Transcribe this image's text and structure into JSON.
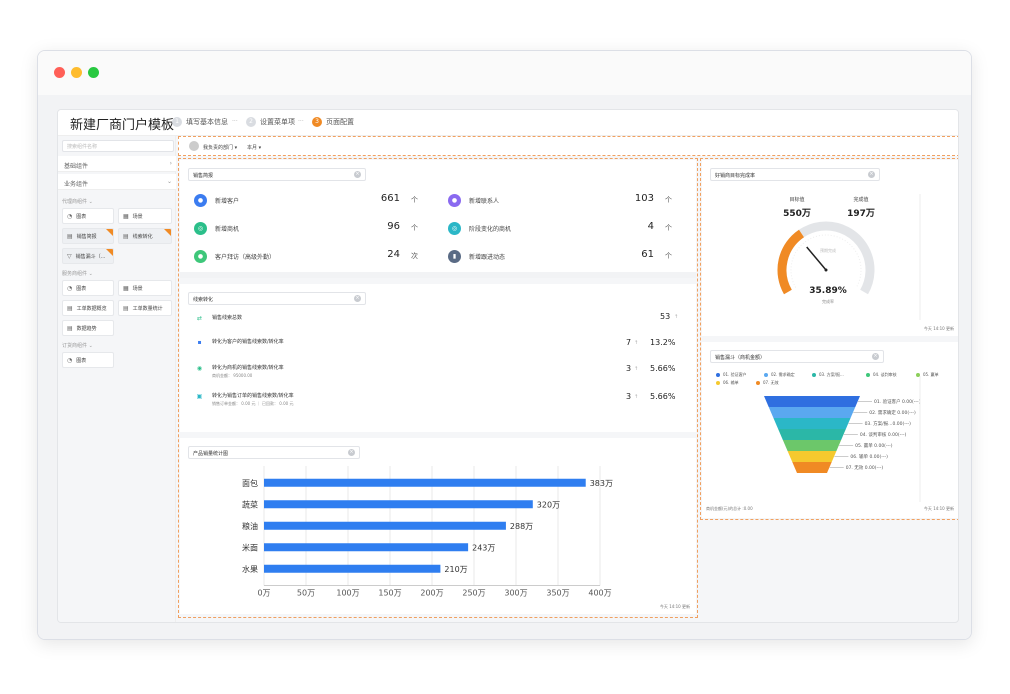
{
  "window": {
    "title": "新建厂商门户模板"
  },
  "steps": [
    {
      "num": "1",
      "label": "填写基本信息"
    },
    {
      "num": "2",
      "label": "设置菜单项"
    },
    {
      "num": "3",
      "label": "页面配置"
    }
  ],
  "step_sep": "···",
  "sidebar": {
    "search_placeholder": "搜索组件名称",
    "groups": [
      {
        "label": "基础组件",
        "chevron": "›"
      },
      {
        "label": "业务组件",
        "chevron": "⌄"
      }
    ],
    "sections": [
      {
        "label": "代理商组件 ⌄"
      },
      {
        "label": "服务商组件 ⌄"
      },
      {
        "label": "订货商组件 ⌄"
      }
    ],
    "items": [
      {
        "label": "图表",
        "icon": "pie-chart-icon"
      },
      {
        "label": "场景",
        "icon": "grid-icon"
      },
      {
        "label": "销售简报",
        "icon": "report-icon"
      },
      {
        "label": "线索转化",
        "icon": "report-icon"
      },
      {
        "label": "销售漏斗（...",
        "icon": "funnel-icon"
      },
      {
        "label": "图表",
        "icon": "pie-chart-icon"
      },
      {
        "label": "场景",
        "icon": "grid-icon"
      },
      {
        "label": "工单数据概览",
        "icon": "report-icon"
      },
      {
        "label": "工单数量统计",
        "icon": "report-icon"
      },
      {
        "label": "数据趋势",
        "icon": "report-icon"
      },
      {
        "label": "图表",
        "icon": "pie-chart-icon"
      }
    ]
  },
  "filters": {
    "dept": "我负责的部门 ▾",
    "period": "本月 ▾"
  },
  "sales_brief": {
    "title": "销售简报",
    "close": "×",
    "rows": [
      {
        "label": "新增客户",
        "value": "661",
        "unit": "个",
        "color": "#3b7cf0",
        "icon": "customer-icon"
      },
      {
        "label": "新增联系人",
        "value": "103",
        "unit": "个",
        "color": "#8a6af0",
        "icon": "contact-icon"
      },
      {
        "label": "新增商机",
        "value": "96",
        "unit": "个",
        "color": "#2bbf8a",
        "icon": "opportunity-icon"
      },
      {
        "label": "阶段变化的商机",
        "value": "4",
        "unit": "个",
        "color": "#2bb7c7",
        "icon": "stage-icon"
      },
      {
        "label": "客户拜访（高级外勤）",
        "value": "24",
        "unit": "次",
        "color": "#3ec77a",
        "icon": "location-icon"
      },
      {
        "label": "新增跟进动态",
        "value": "61",
        "unit": "个",
        "color": "#5a6b85",
        "icon": "activity-icon"
      }
    ]
  },
  "lead_conversion": {
    "title": "线索转化",
    "close": "×",
    "rows": [
      {
        "label": "销售线索总数",
        "sub": "",
        "num": "53",
        "pct": "",
        "arrow": "↑",
        "color": "#2bbf8a"
      },
      {
        "label": "转化为客户的销售线索数/转化率",
        "sub": "",
        "num": "7",
        "pct": "13.2%",
        "arrow": "↑",
        "color": "#3b7cf0"
      },
      {
        "label": "转化为商机的销售线索数/转化率",
        "sub": "商机金额： 95000.00",
        "num": "3",
        "pct": "5.66%",
        "arrow": "↑",
        "color": "#2bbf8a"
      },
      {
        "label": "转化为销售订单的销售线索数/转化率",
        "sub": "销售订单金额： 0.00 元  ｜  已回款： 0.00 元",
        "num": "3",
        "pct": "5.66%",
        "arrow": "↑",
        "color": "#2bb7c7"
      }
    ]
  },
  "product_chart": {
    "title": "产品销量统计图",
    "close": "×",
    "footer": "今天 14:10 更新"
  },
  "chart_data": {
    "type": "bar",
    "orientation": "horizontal",
    "categories": [
      "面包",
      "蔬菜",
      "粮油",
      "米面",
      "水果"
    ],
    "values": [
      383,
      320,
      288,
      243,
      210
    ],
    "value_labels": [
      "383万",
      "320万",
      "288万",
      "243万",
      "210万"
    ],
    "xticks": [
      "0万",
      "50万",
      "100万",
      "150万",
      "200万",
      "250万",
      "300万",
      "350万",
      "400万"
    ],
    "xlim": [
      0,
      400
    ],
    "grid": true,
    "color": "#2f7ef0"
  },
  "target_gauge": {
    "title": "好销商目标完成率",
    "close": "×",
    "target_label": "目标值",
    "target_value": "550万",
    "done_label": "完成值",
    "done_value": "197万",
    "inner_label": "预期完成",
    "percent": "35.89%",
    "percent_label": "完成率",
    "fraction": 0.3589,
    "footer": "今天 14:10 更新"
  },
  "sales_funnel": {
    "title": "销售漏斗（商机金额）",
    "close": "×",
    "legend": [
      {
        "label": "01. 验证客户",
        "color": "#2f6fe0"
      },
      {
        "label": "02. 需求确定",
        "color": "#5aa8f0"
      },
      {
        "label": "03. 方案/报...",
        "color": "#2bb7a7"
      },
      {
        "label": "04. 谈判审核",
        "color": "#3ec77a"
      },
      {
        "label": "05. 赢单",
        "color": "#8ccf5a"
      },
      {
        "label": "06. 输单",
        "color": "#f5c92e"
      },
      {
        "label": "07. 无效",
        "color": "#f08a24"
      }
    ],
    "stages": [
      {
        "label": "01. 验证客户 0.00(---)",
        "color": "#2f6fe0"
      },
      {
        "label": "02. 需求确定 0.00(---)",
        "color": "#5aa8f0"
      },
      {
        "label": "03. 方案/报...0.00(---)",
        "color": "#2bb7c7"
      },
      {
        "label": "04. 谈判审核 0.00(---)",
        "color": "#2bb7a7"
      },
      {
        "label": "05. 赢单 0.00(---)",
        "color": "#6cc76a"
      },
      {
        "label": "06. 输单 0.00(---)",
        "color": "#f5c92e"
      },
      {
        "label": "07. 无效 0.00(---)",
        "color": "#f08a24"
      }
    ],
    "total": "商机金额(元)的总计 :0.00",
    "footer": "今天 14:10 更新"
  }
}
